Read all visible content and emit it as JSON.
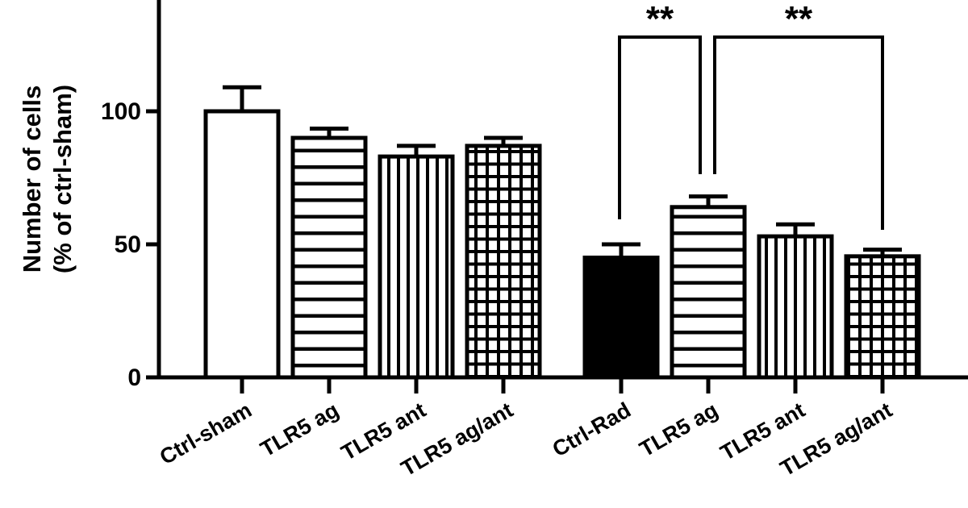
{
  "chart_data": {
    "type": "bar",
    "title": "",
    "ylabel_lines": [
      "Number of cells",
      "(% of ctrl-sham)"
    ],
    "xlabel": "",
    "ylim": [
      0,
      140
    ],
    "yticks": [
      0,
      50,
      100
    ],
    "categories": [
      "Ctrl-sham",
      "TLR5 ag",
      "TLR5 ant",
      "TLR5 ag/ant",
      "Ctrl-Rad",
      "TLR5 ag",
      "TLR5 ant",
      "TLR5 ag/ant"
    ],
    "values": [
      100,
      90,
      83,
      87,
      45,
      64,
      53,
      45.5
    ],
    "errors": [
      9,
      3.5,
      4,
      3,
      5,
      4,
      4.5,
      2.5
    ],
    "patterns": [
      "none",
      "horizontal",
      "vertical",
      "grid",
      "solid",
      "horizontal",
      "vertical",
      "grid"
    ],
    "significance": [
      {
        "from": 4,
        "to": 5,
        "label": "**"
      },
      {
        "from": 5,
        "to": 7,
        "label": "**"
      }
    ],
    "grid": false,
    "legend": "none"
  }
}
